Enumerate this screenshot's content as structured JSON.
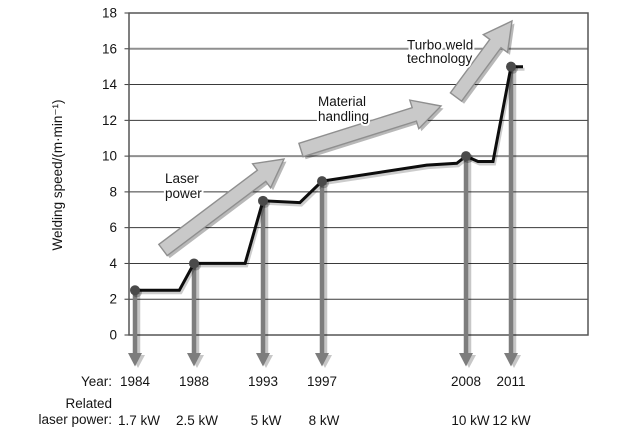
{
  "chart_data": {
    "type": "line",
    "title": "",
    "ylabel": "Welding speed/(m·min⁻¹)",
    "ylim": [
      0,
      18
    ],
    "yticks": [
      0,
      2,
      4,
      6,
      8,
      10,
      12,
      14,
      16,
      18
    ],
    "grid": "horizontal",
    "legend": "none",
    "row_labels": {
      "year": "Year:",
      "power_line1": "Related",
      "power_line2": "laser power:"
    },
    "milestones": [
      {
        "year": "1984",
        "power": "1.7 kW",
        "speed": 2.5
      },
      {
        "year": "1988",
        "power": "2.5 kW",
        "speed": 4
      },
      {
        "year": "1993",
        "power": "5 kW",
        "speed": 7.5
      },
      {
        "year": "1997",
        "power": "8 kW",
        "speed": 8.6
      },
      {
        "year": "2008",
        "power": "10 kW",
        "speed": 10
      },
      {
        "year": "2011",
        "power": "12 kW",
        "speed": 15
      }
    ],
    "series": [
      {
        "name": "Welding speed",
        "points": [
          [
            1984,
            2.5
          ],
          [
            1987,
            2.5
          ],
          [
            1988,
            4
          ],
          [
            1991.7,
            4
          ],
          [
            1993,
            7.5
          ],
          [
            1995.5,
            7.4
          ],
          [
            1997,
            8.6
          ],
          [
            2005,
            9.5
          ],
          [
            2007.3,
            9.6
          ],
          [
            2008,
            10
          ],
          [
            2008.8,
            9.7
          ],
          [
            2009.8,
            9.7
          ],
          [
            2011,
            15
          ],
          [
            2011.8,
            15
          ]
        ]
      }
    ],
    "annotations": [
      {
        "lines": [
          "Laser",
          "power"
        ]
      },
      {
        "lines": [
          "Material",
          "handling"
        ]
      },
      {
        "lines": [
          "Turbo weld",
          "technology"
        ]
      }
    ],
    "colors": {
      "line": "#0d0d0d",
      "marker": "#4a4a4a",
      "drop_arrow": "#7d7d7d",
      "big_arrow_fill": "#c9c9c9",
      "big_arrow_stroke": "#8f8f8f",
      "grid": "#3a3a3a",
      "grid_emph": "#8f8f8f",
      "border": "#555555",
      "text": "#141414"
    }
  }
}
